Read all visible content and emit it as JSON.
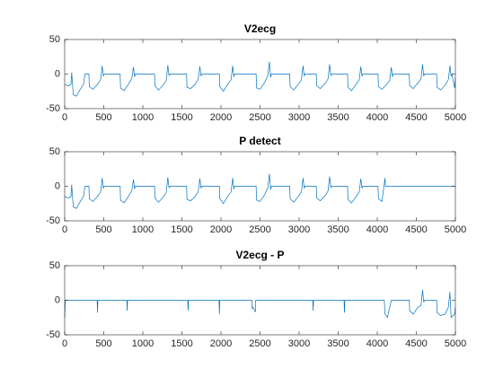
{
  "chart_data": [
    {
      "type": "line",
      "title": "V2ecg",
      "xlim": [
        0,
        5000
      ],
      "ylim": [
        -50,
        50
      ],
      "xticks": [
        0,
        500,
        1000,
        1500,
        2000,
        2500,
        3000,
        3500,
        4000,
        4500,
        5000
      ],
      "yticks": [
        -50,
        0,
        50
      ],
      "series": [
        {
          "name": "V2ecg",
          "color": "#0072bd",
          "x": [
            0,
            50,
            80,
            90,
            110,
            150,
            200,
            240,
            260,
            310,
            315,
            360,
            420,
            460,
            480,
            495,
            505,
            710,
            715,
            760,
            820,
            860,
            880,
            895,
            905,
            1150,
            1155,
            1200,
            1260,
            1300,
            1320,
            1335,
            1345,
            1560,
            1565,
            1610,
            1670,
            1710,
            1730,
            1745,
            1755,
            1980,
            1985,
            2030,
            2090,
            2130,
            2150,
            2165,
            2175,
            2450,
            2455,
            2500,
            2560,
            2600,
            2620,
            2635,
            2645,
            2880,
            2885,
            2930,
            2990,
            3030,
            3050,
            3065,
            3075,
            3220,
            3225,
            3270,
            3330,
            3370,
            3390,
            3405,
            3415,
            3620,
            3625,
            3670,
            3730,
            3770,
            3790,
            3805,
            3815,
            4010,
            4015,
            4060,
            4120,
            4160,
            4180,
            4195,
            4205,
            4410,
            4415,
            4460,
            4520,
            4560,
            4580,
            4595,
            4605,
            4760,
            4765,
            4810,
            4870,
            4910,
            4930,
            4945,
            4955,
            4990,
            5000
          ],
          "values": [
            -15,
            -17,
            -15,
            2,
            -30,
            -32,
            -22,
            -15,
            0,
            0,
            -18,
            -22,
            -15,
            -8,
            12,
            -3,
            0,
            0,
            -20,
            -24,
            -14,
            -6,
            10,
            -4,
            0,
            0,
            -17,
            -23,
            -16,
            -9,
            13,
            -2,
            0,
            0,
            -19,
            -21,
            -15,
            -7,
            11,
            -3,
            0,
            0,
            -18,
            -25,
            -14,
            -8,
            12,
            -4,
            0,
            0,
            -20,
            -22,
            -12,
            -2,
            18,
            -5,
            0,
            0,
            -18,
            -23,
            -15,
            -8,
            12,
            -3,
            0,
            0,
            -17,
            -21,
            -14,
            -7,
            14,
            -2,
            0,
            0,
            -19,
            -24,
            -15,
            -8,
            11,
            -3,
            0,
            0,
            -18,
            -22,
            -15,
            -9,
            10,
            -4,
            0,
            0,
            -17,
            -21,
            -13,
            -7,
            14,
            -3,
            0,
            0,
            -19,
            -23,
            -16,
            -8,
            12,
            -3,
            0,
            -20,
            -5
          ]
        }
      ]
    },
    {
      "type": "line",
      "title": "P detect",
      "xlim": [
        0,
        5000
      ],
      "ylim": [
        -50,
        50
      ],
      "xticks": [
        0,
        500,
        1000,
        1500,
        2000,
        2500,
        3000,
        3500,
        4000,
        4500,
        5000
      ],
      "yticks": [
        -50,
        0,
        50
      ],
      "series": [
        {
          "name": "P detect",
          "color": "#0072bd",
          "x": [
            0,
            50,
            80,
            90,
            110,
            150,
            200,
            240,
            260,
            310,
            315,
            360,
            420,
            460,
            480,
            495,
            505,
            710,
            715,
            760,
            820,
            860,
            880,
            895,
            905,
            1150,
            1155,
            1200,
            1260,
            1300,
            1320,
            1335,
            1345,
            1560,
            1565,
            1610,
            1670,
            1710,
            1730,
            1745,
            1755,
            1980,
            1985,
            2030,
            2090,
            2130,
            2150,
            2165,
            2175,
            2450,
            2455,
            2500,
            2560,
            2600,
            2620,
            2635,
            2645,
            2880,
            2885,
            2930,
            2990,
            3030,
            3050,
            3065,
            3075,
            3220,
            3225,
            3270,
            3330,
            3370,
            3390,
            3405,
            3415,
            3620,
            3625,
            3670,
            3730,
            3770,
            3790,
            3805,
            3815,
            4010,
            4015,
            4060,
            4100,
            4105,
            5000
          ],
          "values": [
            -15,
            -17,
            -15,
            2,
            -30,
            -32,
            -22,
            -15,
            0,
            0,
            -18,
            -22,
            -15,
            -8,
            12,
            -3,
            0,
            0,
            -20,
            -24,
            -14,
            -6,
            10,
            -4,
            0,
            0,
            -17,
            -23,
            -16,
            -9,
            13,
            -2,
            0,
            0,
            -19,
            -21,
            -15,
            -7,
            11,
            -3,
            0,
            0,
            -18,
            -25,
            -14,
            -8,
            12,
            -4,
            0,
            0,
            -20,
            -22,
            -12,
            -2,
            18,
            -5,
            0,
            0,
            -18,
            -23,
            -15,
            -8,
            12,
            -3,
            0,
            0,
            -17,
            -21,
            -14,
            -7,
            14,
            -2,
            0,
            0,
            -19,
            -24,
            -15,
            -8,
            11,
            -3,
            0,
            0,
            -18,
            -22,
            12,
            0,
            0
          ]
        }
      ]
    },
    {
      "type": "line",
      "title": "V2ecg - P",
      "xlim": [
        0,
        5000
      ],
      "ylim": [
        -50,
        50
      ],
      "xticks": [
        0,
        500,
        1000,
        1500,
        2000,
        2500,
        3000,
        3500,
        4000,
        4500,
        5000
      ],
      "yticks": [
        -50,
        0,
        50
      ],
      "series": [
        {
          "name": "V2ecg - P",
          "color": "#0072bd",
          "x": [
            0,
            10,
            415,
            420,
            425,
            795,
            800,
            805,
            1575,
            1580,
            1585,
            1975,
            1980,
            1985,
            2395,
            2400,
            2410,
            2440,
            2445,
            3175,
            3180,
            3185,
            3575,
            3580,
            3585,
            4090,
            4100,
            4130,
            4160,
            4180,
            4410,
            4415,
            4460,
            4520,
            4560,
            4580,
            4595,
            4605,
            4760,
            4765,
            4810,
            4870,
            4910,
            4930,
            4945,
            4990,
            5000
          ],
          "values": [
            -25,
            0,
            0,
            -18,
            0,
            0,
            -15,
            0,
            0,
            -15,
            0,
            0,
            -20,
            0,
            0,
            -12,
            -10,
            -17,
            0,
            0,
            -15,
            0,
            0,
            -18,
            0,
            0,
            -20,
            -25,
            -10,
            0,
            0,
            -15,
            -20,
            -10,
            -8,
            15,
            -3,
            0,
            0,
            -18,
            -22,
            -20,
            -10,
            12,
            -25,
            -20,
            -10
          ]
        }
      ]
    }
  ]
}
